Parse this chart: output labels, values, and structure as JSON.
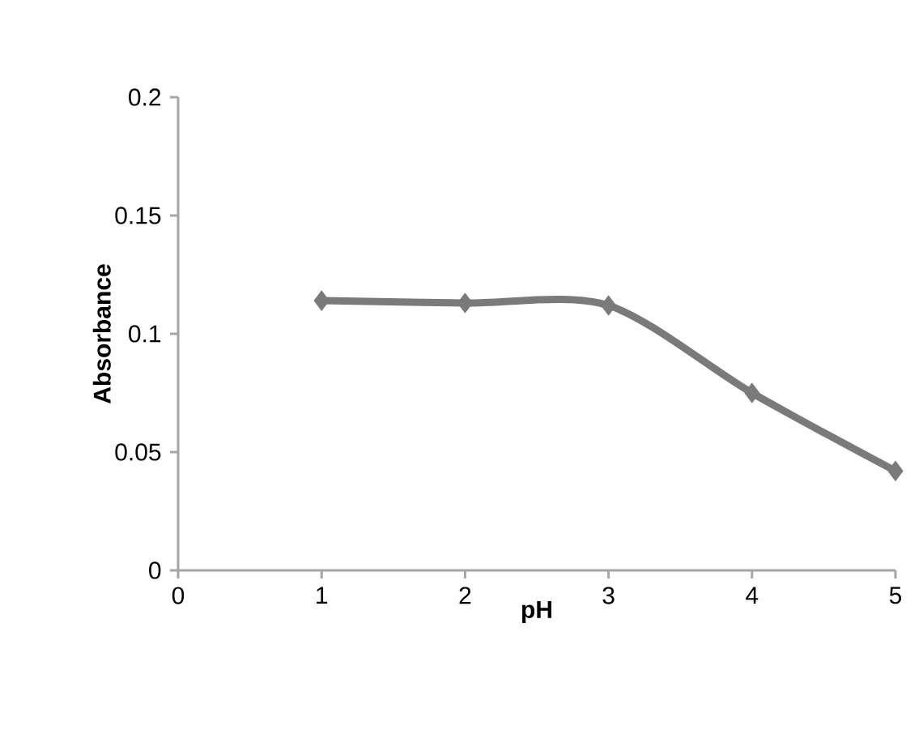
{
  "chart_data": {
    "type": "line",
    "xlabel": "pH",
    "ylabel": "Absorbance",
    "x": [
      1,
      2,
      3,
      4,
      5
    ],
    "series": [
      {
        "color": "#7a7a7a",
        "values": [
          0.114,
          0.113,
          0.112,
          0.075,
          0.042
        ]
      }
    ],
    "xlim": [
      0,
      5
    ],
    "ylim": [
      0,
      0.2
    ],
    "xticks": [
      0,
      1,
      2,
      3,
      4,
      5
    ],
    "yticks": [
      {
        "value": 0,
        "label": "0"
      },
      {
        "value": 0.05,
        "label": "0.05"
      },
      {
        "value": 0.1,
        "label": "0.1"
      },
      {
        "value": 0.15,
        "label": "0.15"
      },
      {
        "value": 0.2,
        "label": "0.2"
      }
    ],
    "marker": "diamond",
    "line_style": "solid"
  }
}
